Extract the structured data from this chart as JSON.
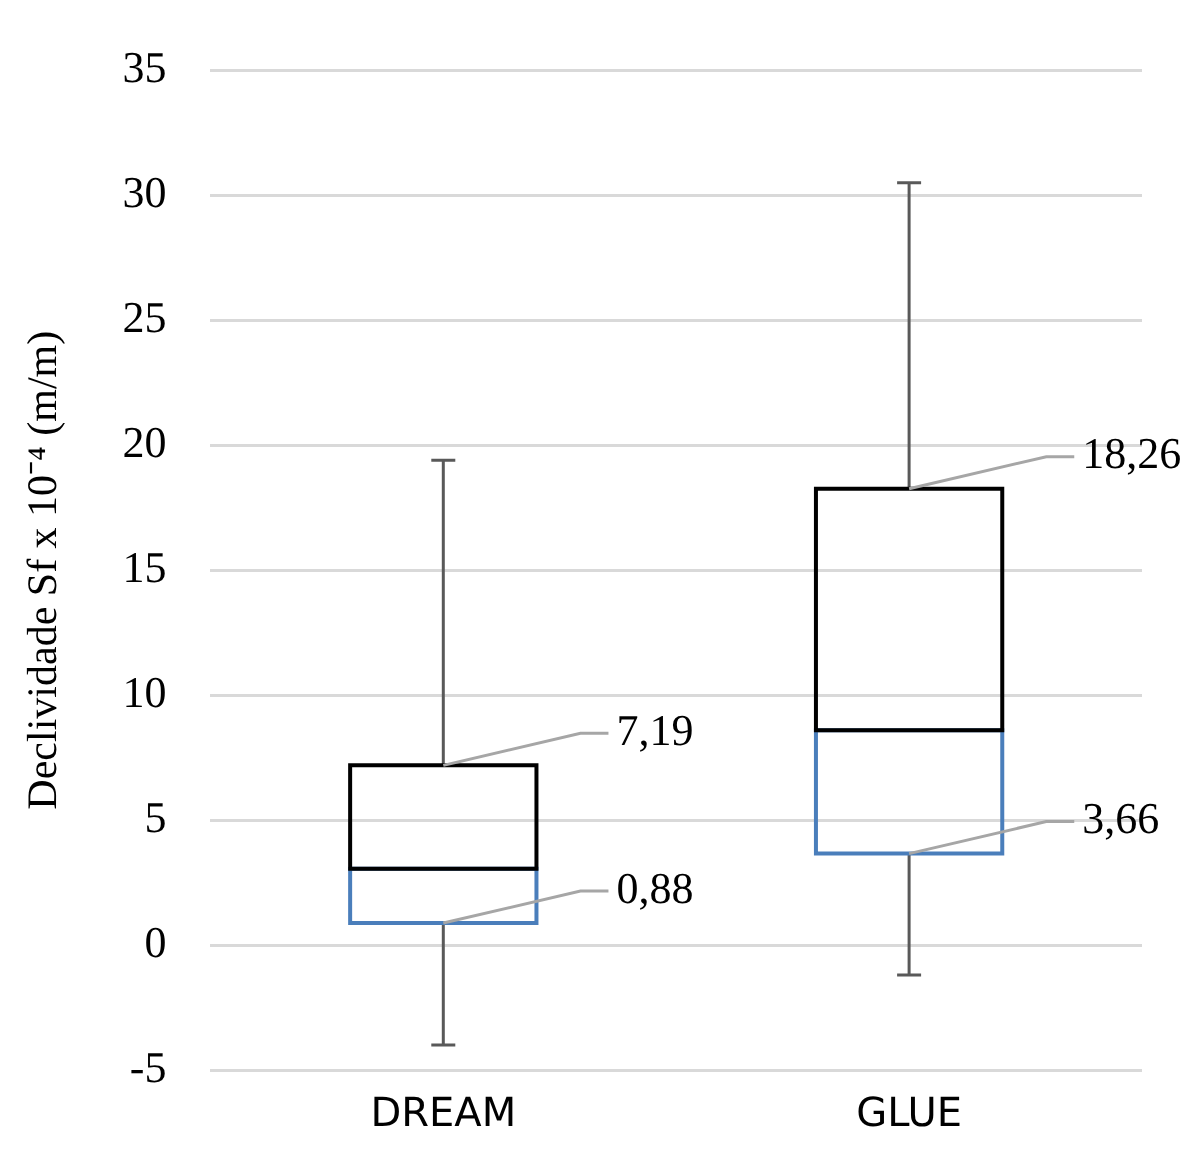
{
  "chart_data": {
    "type": "box",
    "ylabel": "Declividade Sf x 10⁻⁴ (m/m)",
    "categories": [
      "DREAM",
      "GLUE"
    ],
    "series": [
      {
        "color": "#4a7ebb",
        "boxes": [
          {
            "low": -4,
            "q1": 0.88,
            "median": 3.05,
            "q3": 7.19,
            "high": 19.4
          },
          {
            "low": -1.2,
            "q1": 3.66,
            "median": 8.6,
            "q3": 18.26,
            "high": 30.5
          }
        ]
      }
    ],
    "ylim": [
      -5,
      35
    ],
    "yticks": [
      -5,
      0,
      5,
      10,
      15,
      20,
      25,
      30,
      35
    ],
    "grid": "y",
    "legend": false,
    "annotations": [
      {
        "text": "7,19",
        "x": "DREAM",
        "y": 7.19
      },
      {
        "text": "0,88",
        "x": "DREAM",
        "y": 0.88
      },
      {
        "text": "18,26",
        "x": "GLUE",
        "y": 18.26
      },
      {
        "text": "3,66",
        "x": "GLUE",
        "y": 3.66
      }
    ]
  }
}
